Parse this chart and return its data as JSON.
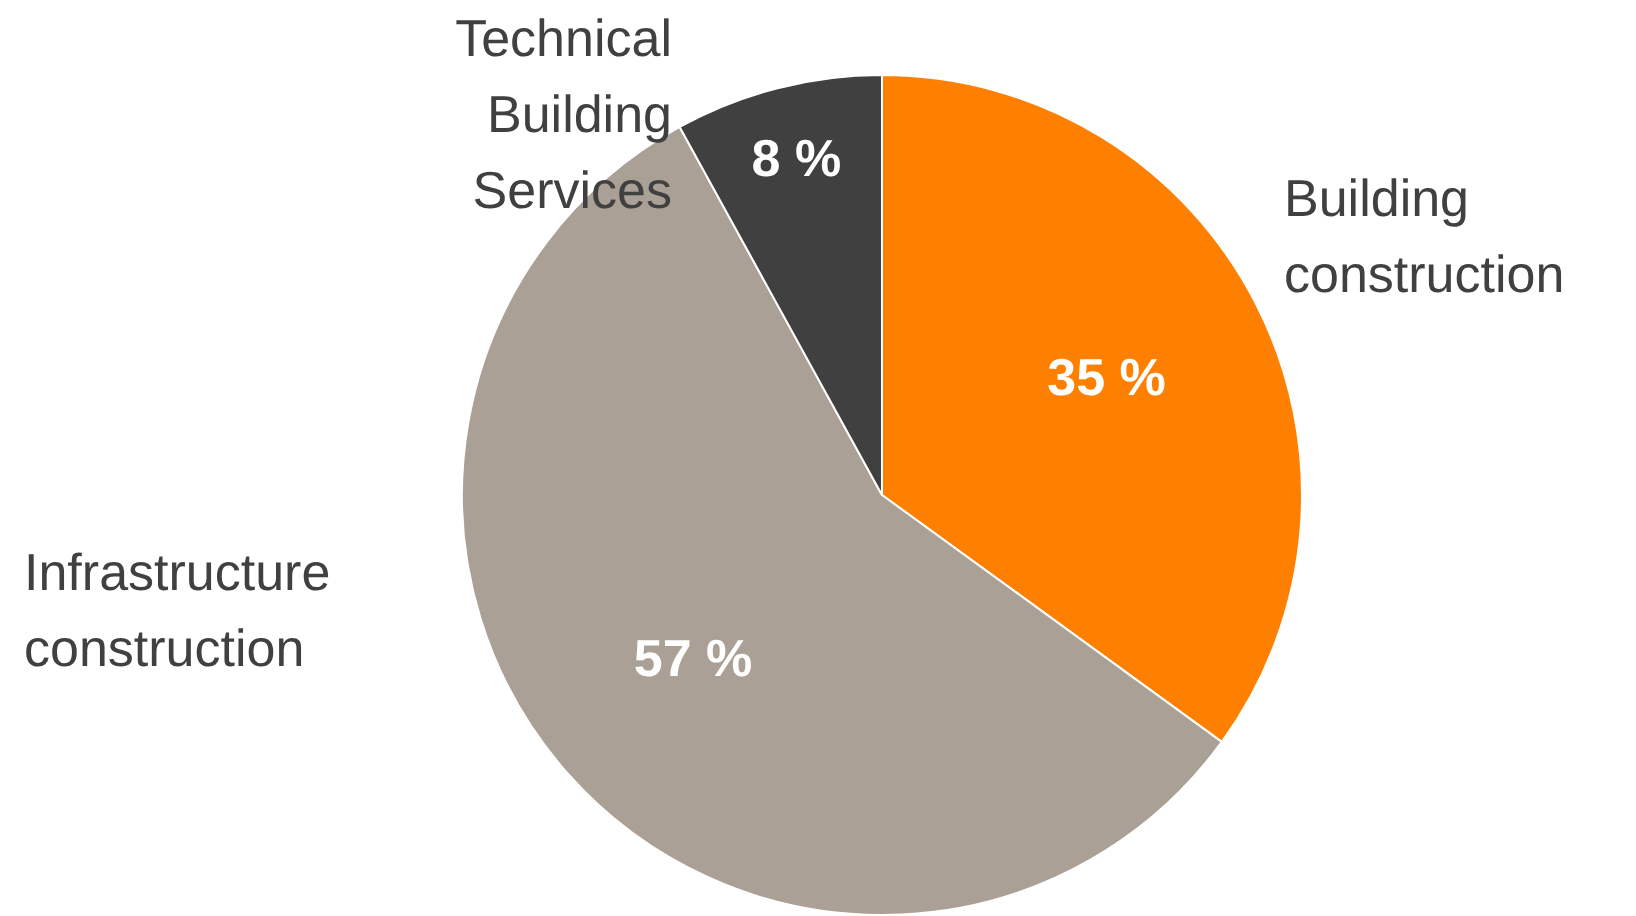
{
  "chart_data": {
    "type": "pie",
    "categories": [
      "Building construction",
      "Infrastructure construction",
      "Technical Building Services"
    ],
    "values": [
      35,
      57,
      8
    ],
    "colors": [
      "#ff8000",
      "#aaa096",
      "#404040"
    ],
    "value_labels": [
      "35 %",
      "57 %",
      "8 %"
    ],
    "legend": false
  }
}
